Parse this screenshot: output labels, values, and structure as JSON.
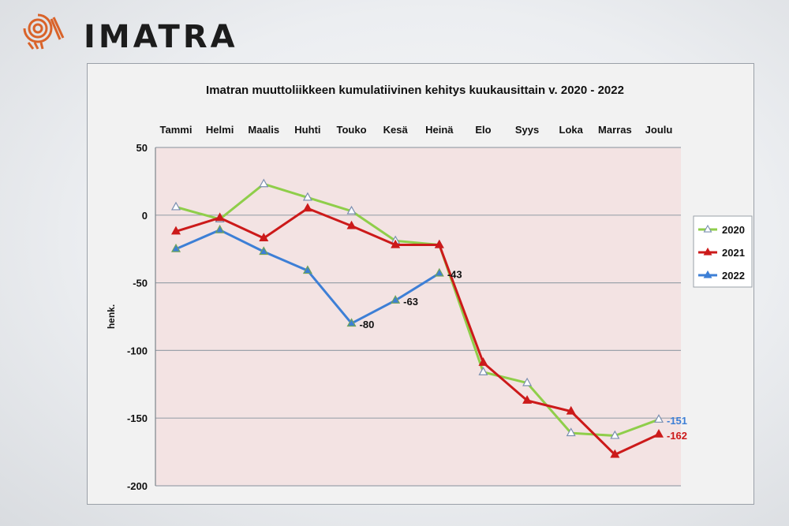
{
  "brand": {
    "name": "IMATRA",
    "logo_icon": "imatra-spiral-logo",
    "logo_color": "#d9632a"
  },
  "chart_data": {
    "type": "line",
    "title": "Imatran muuttoliikkeen kumulatiivinen kehitys kuukausittain v. 2020 - 2022",
    "ylabel": "henk.",
    "xlabel": "",
    "categories": [
      "Tammi",
      "Helmi",
      "Maalis",
      "Huhti",
      "Touko",
      "Kesä",
      "Heinä",
      "Elo",
      "Syys",
      "Loka",
      "Marras",
      "Joulu"
    ],
    "ylim": [
      -200,
      50
    ],
    "yticks": [
      50,
      0,
      -50,
      -100,
      -150,
      -200
    ],
    "grid": true,
    "legend_position": "right",
    "plot_background": "#f3e3e3",
    "series": [
      {
        "name": "2020",
        "color": "#8fce4a",
        "marker": "open-triangle",
        "values": [
          6,
          -3,
          23,
          13,
          3,
          -19,
          -22,
          -116,
          -124,
          -161,
          -163,
          -151
        ]
      },
      {
        "name": "2021",
        "color": "#cc1a1a",
        "marker": "filled-triangle",
        "values": [
          -12,
          -2,
          -17,
          5,
          -8,
          -22,
          -22,
          -109,
          -137,
          -145,
          -177,
          -162
        ]
      },
      {
        "name": "2022",
        "color": "#3d7fd6",
        "marker": "filled-triangle",
        "values": [
          -25,
          -11,
          -27,
          -41,
          -80,
          -63,
          -43,
          null,
          null,
          null,
          null,
          null
        ]
      }
    ],
    "annotations": [
      {
        "series": "2022",
        "category": "Touko",
        "text": "-80",
        "color": "#111111"
      },
      {
        "series": "2022",
        "category": "Kesä",
        "text": "-63",
        "color": "#111111"
      },
      {
        "series": "2022",
        "category": "Heinä",
        "text": "-43",
        "color": "#111111"
      },
      {
        "series": "2020",
        "category": "Joulu",
        "text": "-151",
        "color": "#3d7fd6"
      },
      {
        "series": "2021",
        "category": "Joulu",
        "text": "-162",
        "color": "#cc1a1a"
      }
    ]
  }
}
